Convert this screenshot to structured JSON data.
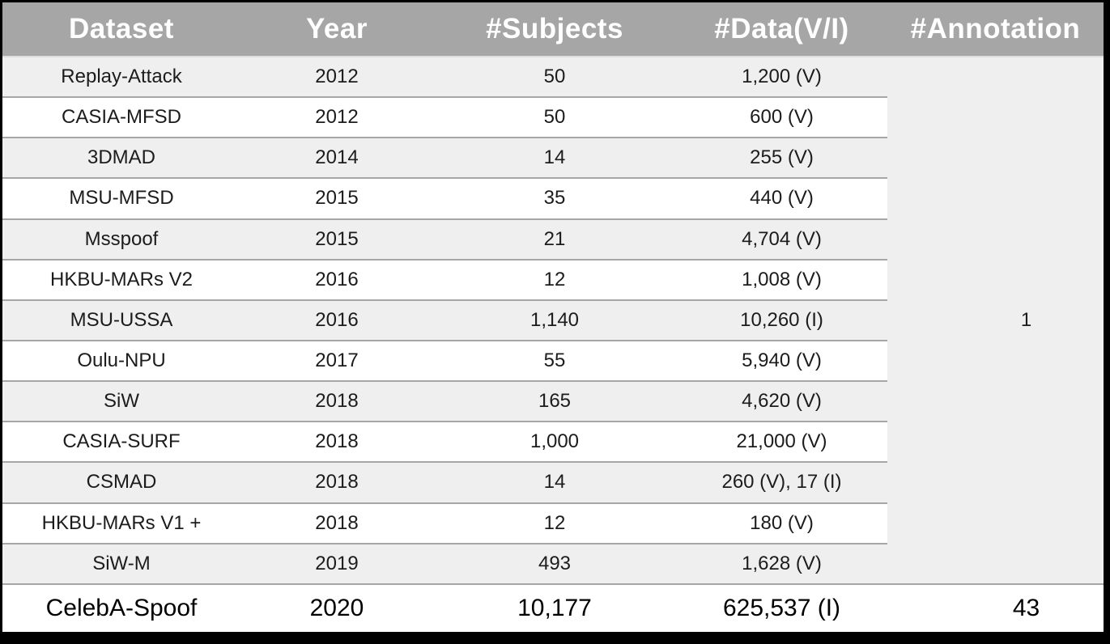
{
  "title": "Face anti-spoofing dataset comparison table",
  "colors": {
    "header_bg": "#a6a6a6",
    "header_text": "#ffffff",
    "stripe_row_bg": "#efefef",
    "plain_row_bg": "#ffffff",
    "row_separator": "#a6a6a6",
    "frame_border": "#000000"
  },
  "header": {
    "columns": [
      "Dataset",
      "Year",
      "#Subjects",
      "#Data(V/I)",
      "#Annotation"
    ]
  },
  "rows": [
    {
      "dataset": "Replay-Attack",
      "year": "2012",
      "subjects": "50",
      "data": "1,200 (V)"
    },
    {
      "dataset": "CASIA-MFSD",
      "year": "2012",
      "subjects": "50",
      "data": "600 (V)"
    },
    {
      "dataset": "3DMAD",
      "year": "2014",
      "subjects": "14",
      "data": "255 (V)"
    },
    {
      "dataset": "MSU-MFSD",
      "year": "2015",
      "subjects": "35",
      "data": "440 (V)"
    },
    {
      "dataset": "Msspoof",
      "year": "2015",
      "subjects": "21",
      "data": "4,704 (V)"
    },
    {
      "dataset": "HKBU-MARs V2",
      "year": "2016",
      "subjects": "12",
      "data": "1,008 (V)"
    },
    {
      "dataset": "MSU-USSA",
      "year": "2016",
      "subjects": "1,140",
      "data": "10,260 (I)"
    },
    {
      "dataset": "Oulu-NPU",
      "year": "2017",
      "subjects": "55",
      "data": "5,940 (V)"
    },
    {
      "dataset": "SiW",
      "year": "2018",
      "subjects": "165",
      "data": "4,620 (V)"
    },
    {
      "dataset": "CASIA-SURF",
      "year": "2018",
      "subjects": "1,000",
      "data": "21,000 (V)"
    },
    {
      "dataset": "CSMAD",
      "year": "2018",
      "subjects": "14",
      "data": "260 (V), 17 (I)"
    },
    {
      "dataset": "HKBU-MARs V1 +",
      "year": "2018",
      "subjects": "12",
      "data": "180 (V)"
    },
    {
      "dataset": "SiW-M",
      "year": "2019",
      "subjects": "493",
      "data": "1,628 (V)"
    }
  ],
  "merged_annotation": "1",
  "final_row": {
    "dataset": "CelebA-Spoof",
    "year": "2020",
    "subjects": "10,177",
    "data": "625,537 (I)",
    "annotation": "43"
  }
}
